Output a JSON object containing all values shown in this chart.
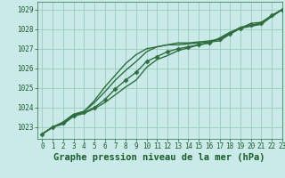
{
  "title": "Graphe pression niveau de la mer (hPa)",
  "bg_color": "#caeaea",
  "grid_color": "#99ccbb",
  "line_color": "#2d6e3e",
  "xlim": [
    -0.5,
    23
  ],
  "ylim": [
    1022.4,
    1029.4
  ],
  "yticks": [
    1023,
    1024,
    1025,
    1026,
    1027,
    1028,
    1029
  ],
  "xticks": [
    0,
    1,
    2,
    3,
    4,
    5,
    6,
    7,
    8,
    9,
    10,
    11,
    12,
    13,
    14,
    15,
    16,
    17,
    18,
    19,
    20,
    21,
    22,
    23
  ],
  "series": [
    [
      1022.65,
      1023.0,
      1023.25,
      1023.65,
      1023.8,
      1024.35,
      1025.05,
      1025.65,
      1026.25,
      1026.7,
      1027.0,
      1027.1,
      1027.2,
      1027.2,
      1027.25,
      1027.3,
      1027.35,
      1027.4,
      1027.75,
      1028.05,
      1028.15,
      1028.25,
      1028.65,
      1029.0
    ],
    [
      1022.65,
      1023.0,
      1023.25,
      1023.65,
      1023.8,
      1024.25,
      1024.8,
      1025.4,
      1025.9,
      1026.35,
      1026.85,
      1027.1,
      1027.2,
      1027.3,
      1027.3,
      1027.35,
      1027.4,
      1027.5,
      1027.8,
      1028.1,
      1028.2,
      1028.3,
      1028.65,
      1029.0
    ],
    [
      1022.65,
      1023.0,
      1023.2,
      1023.6,
      1023.75,
      1024.0,
      1024.4,
      1024.95,
      1025.4,
      1025.8,
      1026.35,
      1026.6,
      1026.85,
      1027.0,
      1027.1,
      1027.2,
      1027.3,
      1027.5,
      1027.75,
      1028.05,
      1028.2,
      1028.3,
      1028.7,
      1029.0
    ],
    [
      1022.65,
      1023.0,
      1023.15,
      1023.55,
      1023.7,
      1023.95,
      1024.25,
      1024.65,
      1025.05,
      1025.4,
      1026.05,
      1026.45,
      1026.65,
      1026.9,
      1027.05,
      1027.2,
      1027.3,
      1027.55,
      1027.85,
      1028.05,
      1028.3,
      1028.35,
      1028.7,
      1029.0
    ]
  ],
  "marker_series_idx": 2,
  "marker_style": "D",
  "marker_size": 2.5,
  "linewidths": [
    1.0,
    1.0,
    1.0,
    1.0
  ],
  "font_color": "#1a5c2a",
  "title_fontsize": 7.5,
  "tick_fontsize": 5.5,
  "fig_width": 3.2,
  "fig_height": 2.0,
  "dpi": 100
}
